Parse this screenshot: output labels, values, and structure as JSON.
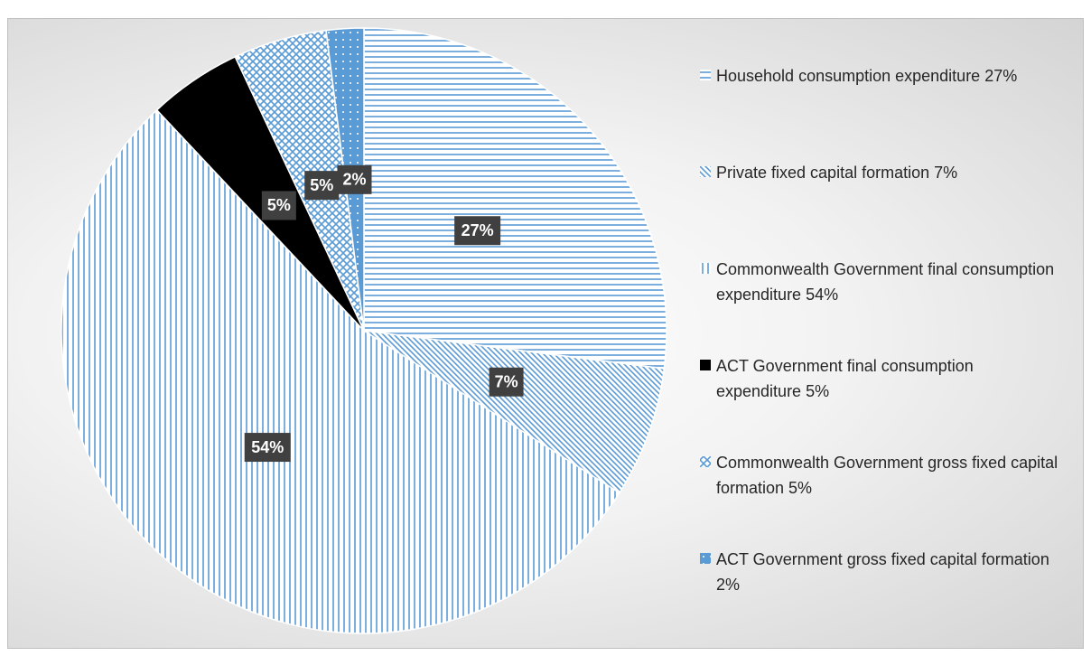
{
  "chart_data": {
    "type": "pie",
    "categories": [
      "Household consumption expenditure 27%",
      "Private fixed capital formation 7%",
      "Commonwealth Government final consumption expenditure 54%",
      "ACT Government final consumption expenditure 5%",
      "Commonwealth Government gross fixed capital formation 5%",
      "ACT Government gross fixed capital formation 2%"
    ],
    "values": [
      27,
      7,
      54,
      5,
      5,
      2
    ],
    "value_labels": [
      "27%",
      "7%",
      "54%",
      "5%",
      "5%",
      "2%"
    ],
    "colors": [
      "#5b9bd5",
      "#5b9bd5",
      "#5b9bd5",
      "#000000",
      "#5b9bd5",
      "#5b9bd5"
    ],
    "patterns": [
      "horizontal",
      "diagonal",
      "vertical",
      "solid",
      "crosshatch",
      "dots"
    ],
    "legend": "right"
  }
}
